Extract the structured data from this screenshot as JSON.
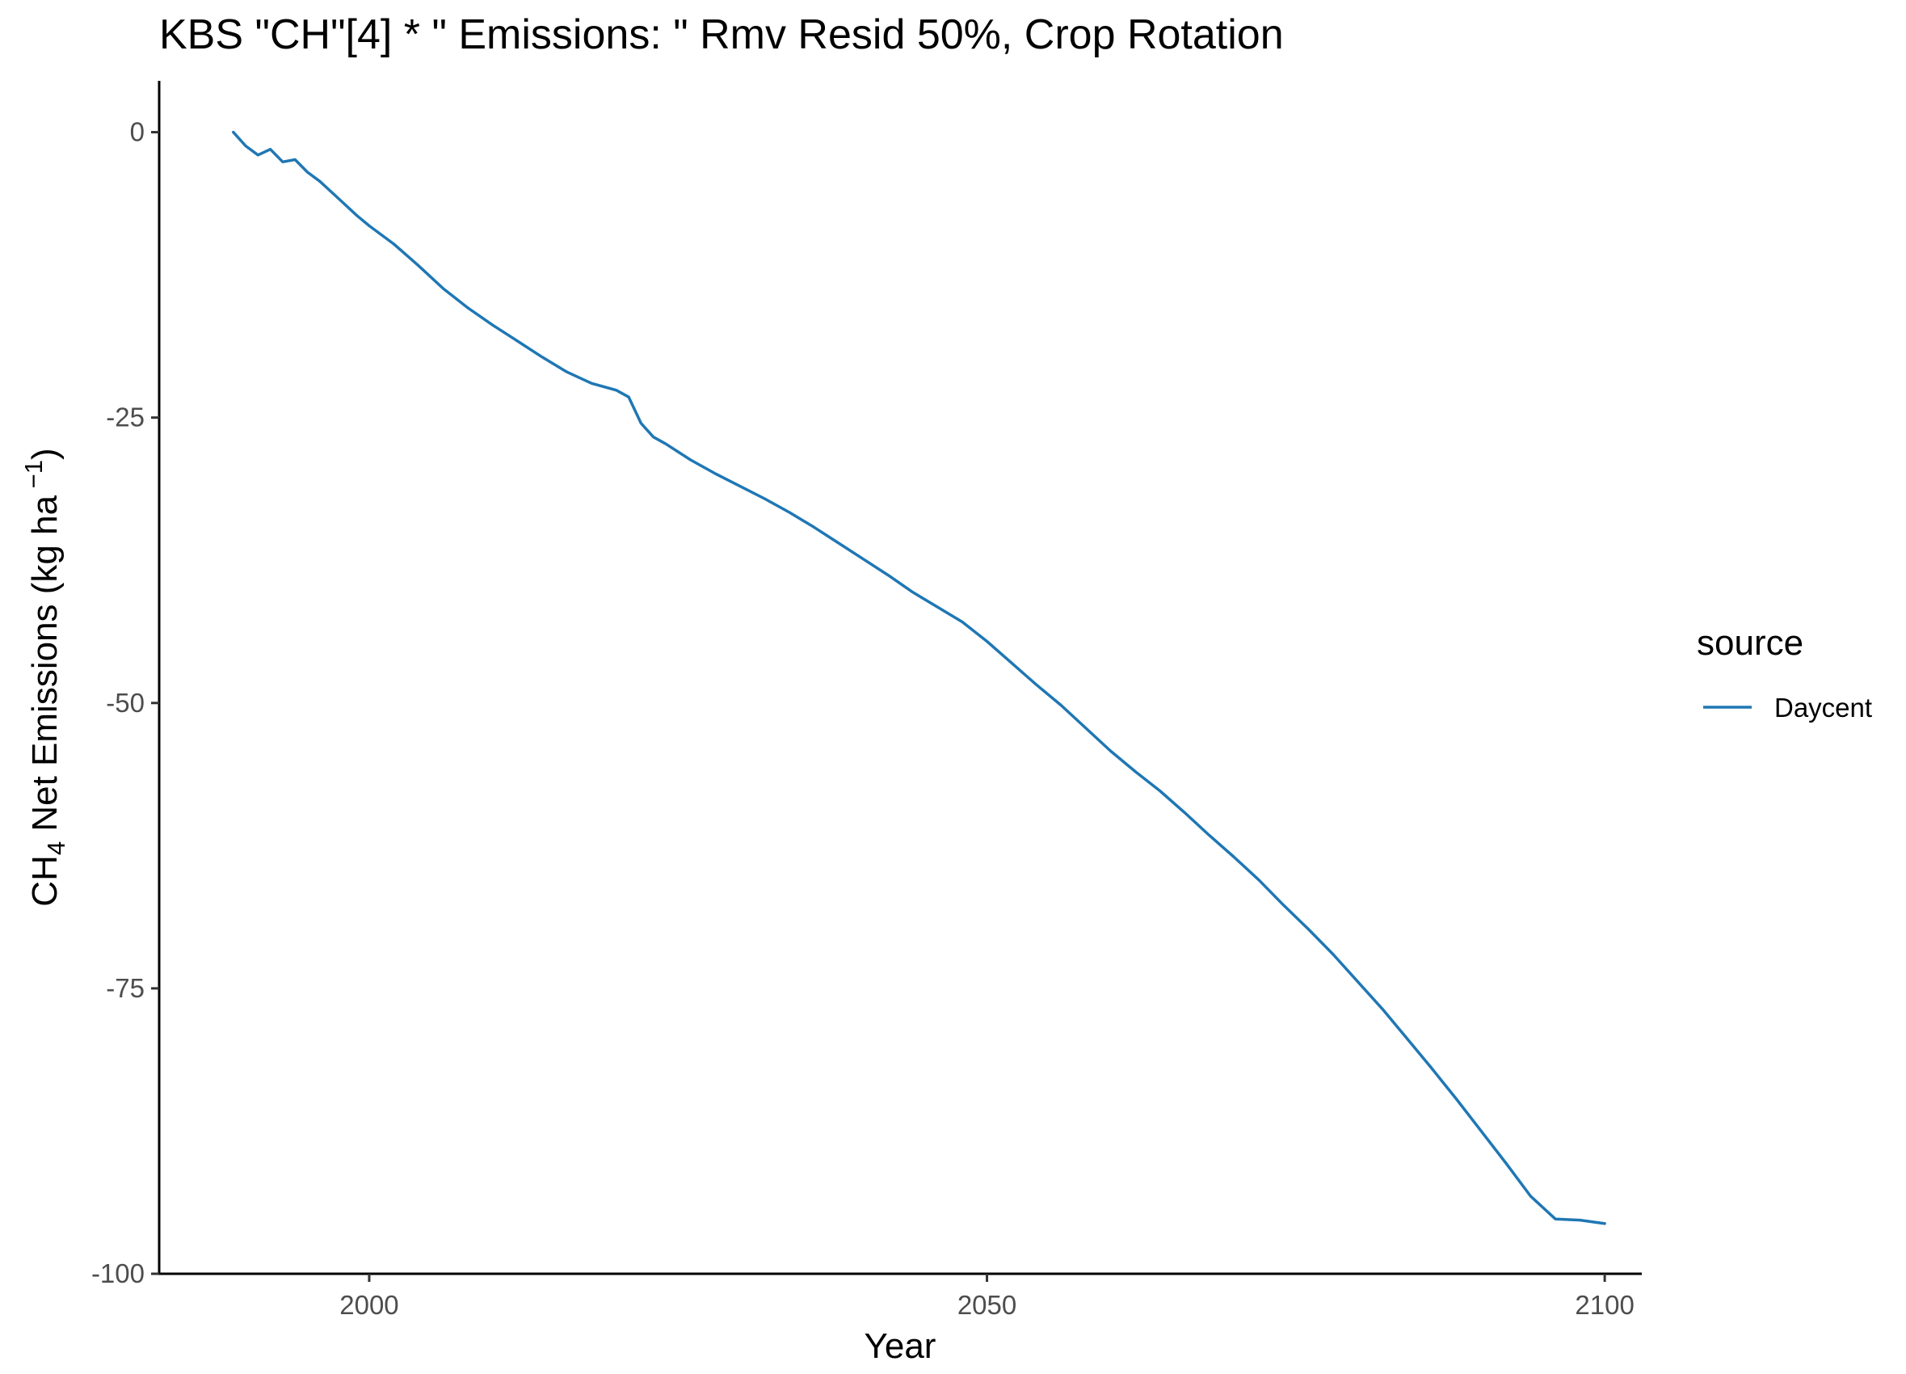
{
  "chart_data": {
    "type": "line",
    "title": "KBS \"CH\"[4] * \" Emissions: \" Rmv Resid 50%, Crop Rotation",
    "xlabel": "Year",
    "ylabel_main": "CH",
    "ylabel_sub": "4",
    "ylabel_rest": " Net Emissions (kg ha",
    "ylabel_sup": " −1",
    "ylabel_close": ")",
    "xlim": [
      1983,
      2103
    ],
    "ylim": [
      -100,
      4.5
    ],
    "x_ticks": [
      2000,
      2050,
      2100
    ],
    "x_tick_labels": [
      "2000",
      "2050",
      "2100"
    ],
    "y_ticks": [
      0,
      -25,
      -50,
      -75,
      -100
    ],
    "y_tick_labels": [
      "0",
      "-25",
      "-50",
      "-75",
      "-100"
    ],
    "grid": false,
    "legend": {
      "title": "source",
      "placement": "right",
      "entries": [
        "Daycent"
      ]
    },
    "series": [
      {
        "name": "Daycent",
        "color": "#1f77b4",
        "x": [
          1989,
          1990,
          1991,
          1992,
          1993,
          1994,
          1995,
          1996,
          1997,
          1998,
          1999,
          2000,
          2002,
          2004,
          2006,
          2008,
          2010,
          2012,
          2014,
          2016,
          2018,
          2020,
          2021,
          2022,
          2023,
          2024,
          2026,
          2028,
          2030,
          2032,
          2034,
          2036,
          2038,
          2040,
          2042,
          2044,
          2046,
          2048,
          2050,
          2052,
          2054,
          2056,
          2058,
          2060,
          2062,
          2064,
          2066,
          2068,
          2070,
          2072,
          2074,
          2076,
          2078,
          2080,
          2082,
          2084,
          2086,
          2088,
          2090,
          2092,
          2094,
          2096,
          2098,
          2100
        ],
        "y": [
          0,
          -1.2,
          -2.0,
          -1.5,
          -2.6,
          -2.4,
          -3.5,
          -4.3,
          -5.3,
          -6.3,
          -7.3,
          -8.2,
          -9.8,
          -11.7,
          -13.7,
          -15.4,
          -16.9,
          -18.3,
          -19.7,
          -21.0,
          -22.0,
          -22.6,
          -23.2,
          -25.5,
          -26.7,
          -27.3,
          -28.7,
          -29.9,
          -31.0,
          -32.1,
          -33.3,
          -34.6,
          -36.0,
          -37.4,
          -38.8,
          -40.3,
          -41.6,
          -42.9,
          -44.6,
          -46.5,
          -48.4,
          -50.2,
          -52.2,
          -54.2,
          -56.0,
          -57.7,
          -59.6,
          -61.6,
          -63.5,
          -65.5,
          -67.7,
          -69.8,
          -72.0,
          -74.4,
          -76.8,
          -79.4,
          -82.0,
          -84.7,
          -87.5,
          -90.3,
          -93.2,
          -95.2,
          -95.3,
          -95.6
        ]
      }
    ]
  }
}
